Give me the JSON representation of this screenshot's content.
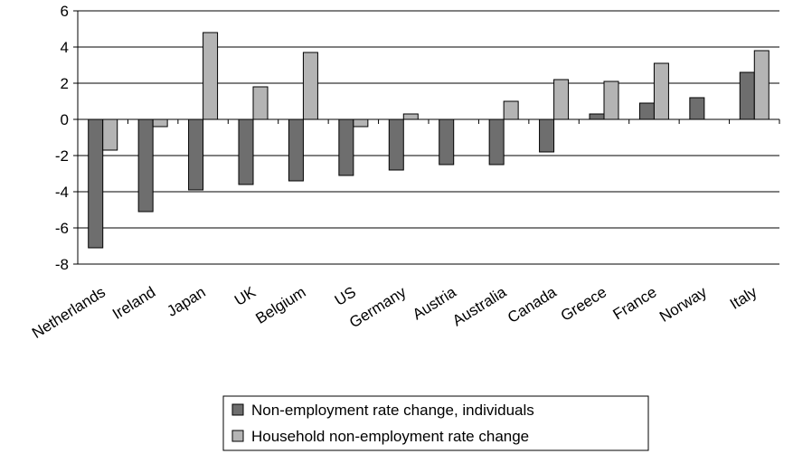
{
  "chart_data": {
    "type": "bar",
    "categories": [
      "Netherlands",
      "Ireland",
      "Japan",
      "UK",
      "Belgium",
      "US",
      "Germany",
      "Austria",
      "Australia",
      "Canada",
      "Greece",
      "France",
      "Norway",
      "Italy"
    ],
    "series": [
      {
        "name": "Non-employment rate change, individuals",
        "color": "#6e6e6e",
        "values": [
          -7.1,
          -5.1,
          -3.9,
          -3.6,
          -3.4,
          -3.1,
          -2.8,
          -2.5,
          -2.5,
          -1.8,
          0.3,
          0.9,
          1.2,
          2.6
        ]
      },
      {
        "name": "Household non-employment rate change",
        "color": "#b4b4b4",
        "values": [
          -1.7,
          -0.4,
          4.8,
          1.8,
          3.7,
          -0.4,
          0.3,
          null,
          1.0,
          2.2,
          2.1,
          3.1,
          null,
          3.8
        ]
      }
    ],
    "yticks": [
      "6",
      "4",
      "2",
      "0",
      "-2",
      "-4",
      "-6",
      "-8"
    ],
    "ylim": [
      -8,
      6
    ],
    "grid": true,
    "legend_position": "bottom-center"
  }
}
